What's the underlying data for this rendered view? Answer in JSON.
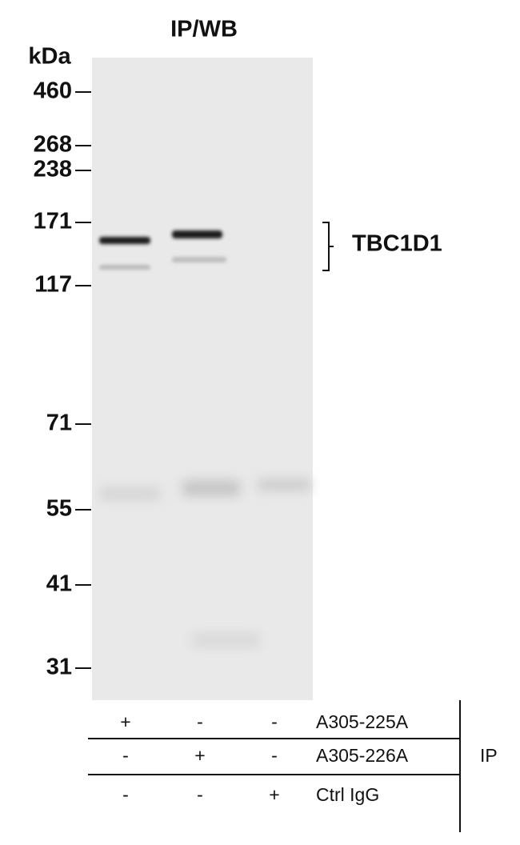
{
  "title": "IP/WB",
  "unit": "kDa",
  "markers": [
    "460",
    "268",
    "238",
    "171",
    "117",
    "71",
    "55",
    "41",
    "31"
  ],
  "band_label": "TBC1D1",
  "table": {
    "rows": [
      {
        "name": "A305-225A",
        "cells": [
          "+",
          "-",
          "-"
        ]
      },
      {
        "name": "A305-226A",
        "cells": [
          "-",
          "+",
          "-"
        ]
      },
      {
        "name": "Ctrl IgG",
        "cells": [
          "-",
          "-",
          "+"
        ]
      }
    ],
    "group": "IP"
  }
}
